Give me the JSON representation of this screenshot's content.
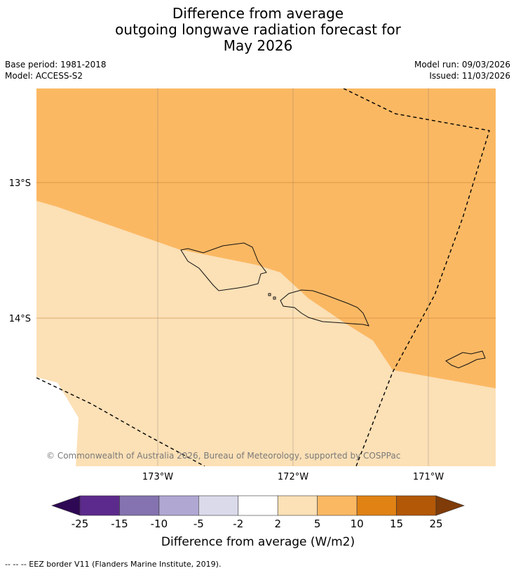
{
  "title_lines": [
    "Difference from average",
    "outgoing longwave radiation forecast for",
    "May 2026"
  ],
  "meta": {
    "base_period": "Base period: 1981-2018",
    "model": "Model: ACCESS-S2",
    "model_run": "Model run: 09/03/2026",
    "issued": "Issued: 11/03/2026"
  },
  "map": {
    "lat_labels": [
      "13°S",
      "14°S"
    ],
    "lon_labels": [
      "173°W",
      "172°W",
      "171°W"
    ],
    "copyright": "© Commonwealth of Australia 2026, Bureau of Meteorology, supported by COSPPac",
    "region_colors": {
      "2_to_5": "#fce0b6",
      "5_to_10": "#fbb863",
      "no_data": "#ffffff"
    }
  },
  "colorbar": {
    "ticks": [
      "-25",
      "-15",
      "-10",
      "-5",
      "-2",
      "2",
      "5",
      "10",
      "15",
      "25"
    ],
    "colors": [
      "#2e0854",
      "#5c2a8c",
      "#8473b0",
      "#b0a7d3",
      "#dadaeb",
      "#ffffff",
      "#fce0b6",
      "#fbb863",
      "#e08214",
      "#b35806",
      "#7f3b08"
    ],
    "title": "Difference from average (W/m2)"
  },
  "footnote": "--  --  -- EEZ border V11 (Flanders Marine Institute, 2019)."
}
